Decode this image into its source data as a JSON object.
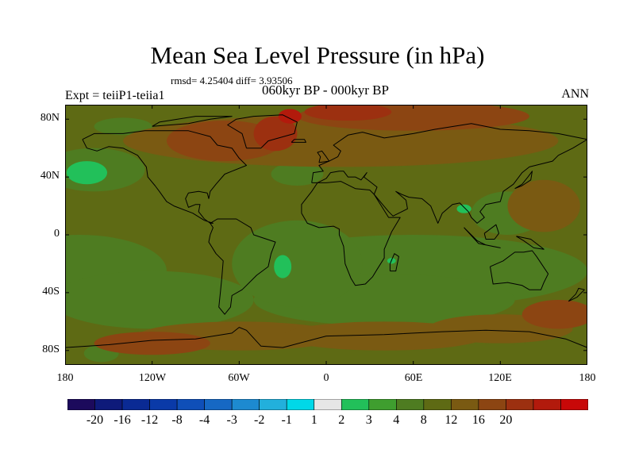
{
  "title": "Mean Sea Level Pressure (in hPa)",
  "stats": "rmsd= 4.25404 diff= 3.93506",
  "subtitle": "060kyr BP - 000kyr BP",
  "left_label": "Expt = teiiP1-teiia1",
  "right_label": "ANN",
  "lat_labels": [
    "80N",
    "40N",
    "0",
    "40S",
    "80S"
  ],
  "lon_labels": [
    "180",
    "120W",
    "60W",
    "0",
    "60E",
    "120E",
    "180"
  ],
  "colorbar": {
    "labels": [
      "-20",
      "-16",
      "-12",
      "-8",
      "-4",
      "-3",
      "-2",
      "-1",
      "1",
      "2",
      "3",
      "4",
      "8",
      "12",
      "16",
      "20"
    ],
    "colors": [
      "#1c0a5c",
      "#0e1a7a",
      "#0a2a94",
      "#0a3aa8",
      "#0f4fb8",
      "#1668c4",
      "#1d8ad0",
      "#22b0dc",
      "#00d8e8",
      "#e6e6e6",
      "#22c05a",
      "#3f9e2f",
      "#4e7c21",
      "#5e6a14",
      "#7a5a12",
      "#8c4512",
      "#9c3010",
      "#b21a0c",
      "#c80808"
    ]
  },
  "chart_data": {
    "type": "heatmap",
    "title": "Mean Sea Level Pressure (in hPa)",
    "subtitle": "060kyr BP - 000kyr BP",
    "experiment": "Expt = teiiP1-teiia1",
    "season": "ANN",
    "rmsd": 4.25404,
    "diff": 3.93506,
    "lat_range": [
      -90,
      90
    ],
    "lon_range": [
      -180,
      180
    ],
    "levels": [
      -20,
      -16,
      -12,
      -8,
      -4,
      -3,
      -2,
      -1,
      1,
      2,
      3,
      4,
      8,
      12,
      16,
      20
    ],
    "base_fill": "#5e6a14",
    "regions": [
      {
        "fill": "#4e7c21",
        "lon": -170,
        "lat": -25,
        "rx": 60,
        "ry": 25
      },
      {
        "fill": "#4e7c21",
        "lon": 60,
        "lat": -25,
        "rx": 120,
        "ry": 25
      },
      {
        "fill": "#4e7c21",
        "lon": -120,
        "lat": -45,
        "rx": 70,
        "ry": 20
      },
      {
        "fill": "#4e7c21",
        "lon": 40,
        "lat": -45,
        "rx": 90,
        "ry": 18
      },
      {
        "fill": "#4e7c21",
        "lon": -20,
        "lat": -20,
        "rx": 45,
        "ry": 30
      },
      {
        "fill": "#4e7c21",
        "lon": -160,
        "lat": 45,
        "rx": 35,
        "ry": 15
      },
      {
        "fill": "#4e7c21",
        "lon": 125,
        "lat": 15,
        "rx": 25,
        "ry": 15
      },
      {
        "fill": "#4e7c21",
        "lon": -20,
        "lat": 42,
        "rx": 18,
        "ry": 8
      },
      {
        "fill": "#4e7c21",
        "lon": -140,
        "lat": 75,
        "rx": 20,
        "ry": 6
      },
      {
        "fill": "#4e7c21",
        "lon": -155,
        "lat": -82,
        "rx": 12,
        "ry": 6
      },
      {
        "fill": "#22c05a",
        "lon": -165,
        "lat": 43,
        "rx": 14,
        "ry": 8
      },
      {
        "fill": "#22c05a",
        "lon": -30,
        "lat": -22,
        "rx": 6,
        "ry": 8
      },
      {
        "fill": "#22c05a",
        "lon": 45,
        "lat": -18,
        "rx": 3,
        "ry": 2
      },
      {
        "fill": "#22c05a",
        "lon": 95,
        "lat": 18,
        "rx": 5,
        "ry": 3
      },
      {
        "fill": "#7a5a12",
        "lon": -60,
        "lat": -70,
        "rx": 70,
        "ry": 10
      },
      {
        "fill": "#7a5a12",
        "lon": 40,
        "lat": -70,
        "rx": 70,
        "ry": 10
      },
      {
        "fill": "#7a5a12",
        "lon": 120,
        "lat": -65,
        "rx": 50,
        "ry": 10
      },
      {
        "fill": "#7a5a12",
        "lon": 150,
        "lat": 20,
        "rx": 25,
        "ry": 18
      },
      {
        "fill": "#7a5a12",
        "lon": 10,
        "lat": 65,
        "rx": 150,
        "ry": 18
      },
      {
        "fill": "#8c4512",
        "lon": -70,
        "lat": 65,
        "rx": 40,
        "ry": 14
      },
      {
        "fill": "#8c4512",
        "lon": 60,
        "lat": 82,
        "rx": 80,
        "ry": 10
      },
      {
        "fill": "#8c4512",
        "lon": 160,
        "lat": -55,
        "rx": 25,
        "ry": 10
      },
      {
        "fill": "#8c4512",
        "lon": -120,
        "lat": -75,
        "rx": 40,
        "ry": 8
      },
      {
        "fill": "#9c3010",
        "lon": -35,
        "lat": 70,
        "rx": 15,
        "ry": 12
      },
      {
        "fill": "#9c3010",
        "lon": 15,
        "lat": 85,
        "rx": 30,
        "ry": 6
      },
      {
        "fill": "#b21a0c",
        "lon": -25,
        "lat": 82,
        "rx": 8,
        "ry": 5
      }
    ]
  }
}
